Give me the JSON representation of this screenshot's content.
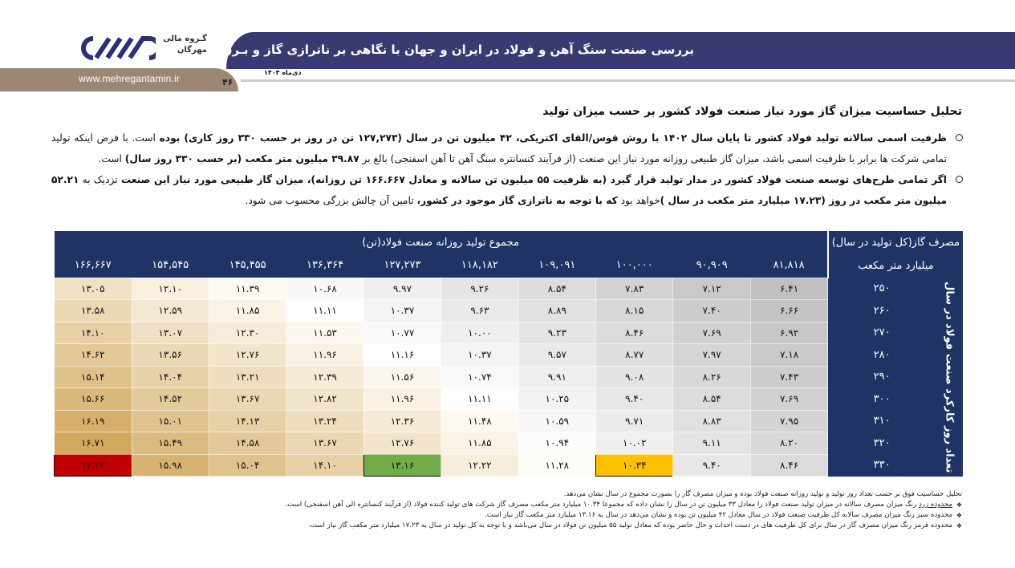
{
  "header": {
    "title": "بررسی صنعت سنگ آهن و فولاد در ایران و جهان با نگاهی بر ناترازی گاز و بـرق در صنعت فولاد",
    "date": "دی‌ماه ۱۴۰۳",
    "url": "www.mehregantamin.ir",
    "page_number": "۴۶",
    "logo_line1": "گـروه مالی",
    "logo_line2": "مهرگان"
  },
  "section_title": "تحلیل حساسیت میزان گاز مورد نیاز صنعت فولاد کشور بر حسب میزان تولید",
  "bullets": [
    {
      "b1": "ظرفیت اسمی سالانه تولید فولاد کشور تا پایان سال ۱۴۰۲ با روش قوس/القای اکتریکی، ۴۲ میلیون تن در سال (۱۲۷,۲۷۳ تن در روز بر حسب ۳۳۰ روز کاری)  بوده",
      "t1": " است. با فرض اینکه تولید تمامی شرکت ها برابر با ظرفیت اسمی باشد، میزان گاز طبیعی روزانه مورد نیاز این صنعت (از فرآیند کنسانتره سنگ آهن تا آهن اسفنجی) بالغ بر ",
      "b2": "۳۹.۸۷ میلیون متر مکعب (بر حسب ۳۳۰ روز سال)",
      "t2": " است."
    },
    {
      "b1": "اگر تمامی طرح‌های توسعه صنعت فولاد کشور در مدار تولید قرار گیرد (به ظرفیت ۵۵ میلیون تن سالانه و معادل ۱۶۶.۶۶۷ تن روزانه)، میزان گاز طبیعی مورد نیاز این صنعت",
      "t1": " نزدیک به ",
      "b2": "۵۲.۲۱ میلیون متر مکعب در روز (۱۷.۲۳ میلیارد متر مکعب در سال )",
      "t2": "خواهد بود ",
      "b3": "که با توجه به ناترازی گاز موجود در کشور،",
      "t3": " تامین آن چالش بزرگی محسوب می شود."
    }
  ],
  "table": {
    "group_header": "مجموع تولید روزانه صنعت فولاد(تن)",
    "corner_header_1": "مصرف گاز(کل تولید در سال)",
    "corner_header_2": "میلیارد متر مکعب",
    "side_label": "تعداد روز کارکرد صنعت فولاد در سال",
    "columns": [
      "۸۱,۸۱۸",
      "۹۰,۹۰۹",
      "۱۰۰,۰۰۰",
      "۱۰۹,۰۹۱",
      "۱۱۸,۱۸۲",
      "۱۲۷,۲۷۳",
      "۱۳۶,۳۶۴",
      "۱۴۵,۴۵۵",
      "۱۵۴,۵۴۵",
      "۱۶۶,۶۶۷"
    ],
    "rows": [
      {
        "days": "۲۵۰",
        "values": [
          "۶.۴۱",
          "۷.۱۲",
          "۷.۸۳",
          "۸.۵۴",
          "۹.۲۶",
          "۹.۹۷",
          "۱۰.۶۸",
          "۱۱.۳۹",
          "۱۲.۱۰",
          "۱۳.۰۵"
        ]
      },
      {
        "days": "۲۶۰",
        "values": [
          "۶.۶۶",
          "۷.۴۰",
          "۸.۱۵",
          "۸.۸۹",
          "۹.۶۳",
          "۱۰.۳۷",
          "۱۱.۱۱",
          "۱۱.۸۵",
          "۱۲.۵۹",
          "۱۳.۵۸"
        ]
      },
      {
        "days": "۲۷۰",
        "values": [
          "۶.۹۲",
          "۷.۶۹",
          "۸.۴۶",
          "۹.۲۳",
          "۱۰.۰۰",
          "۱۰.۷۷",
          "۱۱.۵۳",
          "۱۲.۳۰",
          "۱۳.۰۷",
          "۱۴.۱۰"
        ]
      },
      {
        "days": "۲۸۰",
        "values": [
          "۷.۱۸",
          "۷.۹۷",
          "۸.۷۷",
          "۹.۵۷",
          "۱۰.۳۷",
          "۱۱.۱۶",
          "۱۱.۹۶",
          "۱۲.۷۶",
          "۱۳.۵۶",
          "۱۴.۶۲"
        ]
      },
      {
        "days": "۲۹۰",
        "values": [
          "۷.۴۳",
          "۸.۲۶",
          "۹.۰۸",
          "۹.۹۱",
          "۱۰.۷۴",
          "۱۱.۵۶",
          "۱۲.۳۹",
          "۱۳.۲۱",
          "۱۴.۰۴",
          "۱۵.۱۴"
        ]
      },
      {
        "days": "۳۰۰",
        "values": [
          "۷.۶۹",
          "۸.۵۴",
          "۹.۴۰",
          "۱۰.۲۵",
          "۱۱.۱۱",
          "۱۱.۹۶",
          "۱۲.۸۲",
          "۱۳.۶۷",
          "۱۴.۵۲",
          "۱۵.۶۶"
        ]
      },
      {
        "days": "۳۱۰",
        "values": [
          "۷.۹۵",
          "۸.۸۳",
          "۹.۷۱",
          "۱۰.۵۹",
          "۱۱.۴۸",
          "۱۲.۳۶",
          "۱۳.۲۴",
          "۱۴.۱۳",
          "۱۵.۰۱",
          "۱۶.۱۹"
        ]
      },
      {
        "days": "۳۲۰",
        "values": [
          "۸.۲۰",
          "۹.۱۱",
          "۱۰.۰۲",
          "۱۰.۹۴",
          "۱۱.۸۵",
          "۱۲.۷۶",
          "۱۳.۶۷",
          "۱۴.۵۸",
          "۱۵.۴۹",
          "۱۶.۷۱"
        ]
      },
      {
        "days": "۳۳۰",
        "values": [
          "۸.۴۶",
          "۹.۴۰",
          "۱۰.۳۴",
          "۱۱.۲۸",
          "۱۲.۲۲",
          "۱۳.۱۶",
          "۱۴.۱۰",
          "۱۵.۰۴",
          "۱۵.۹۸",
          "۱۷.۲۳"
        ]
      }
    ],
    "highlights": {
      "yellow": "#ffc000",
      "green": "#70ad47",
      "red": "#c00000"
    }
  },
  "notes": {
    "intro": "تحلیل حساسیت فوق بر حسب تعداد روز تولید و تولید روزانه صنعت فولاد بوده و میزان مصرف گاز را بصورت مجموع در سال نشان می‌دهد.",
    "items": [
      {
        "u": "محدوده زرد",
        "t": " رنگ میزان مصرف سالانه در میزان تولید صنعت فولاد را معادل ۳۳ میلیون تن در سال را نشان داده که مجموعا ۱۰.۳۴ میلیارد متر مکعب مصرف گاز شرکت های تولید کننده فولاد (از فرآیند کنسانتره الی آهن اسفنجی) است."
      },
      {
        "u": "",
        "t": "محدوده سبز رنگ میزان مصرف سالانه کل ظرفیت صنعت فولاد در سال معادل ۴۲ میلیون تن بوده و نشان می‌دهد در سال به ۱۳.۱۶ میلیارد متر مکعب گاز نیاز است."
      },
      {
        "u": "",
        "t": "محدوده قرمز رنگ میزان مصرف گاز در سال برای کل ظرفیت های در دست احداث و حال حاضر بوده که معادل تولید ۵۵ میلیون تن فولاد در سال می‌باشد و با توجه به کل تولید در سال به ۱۷.۲۳ میلیارد متر مکعب گاز نیاز است."
      }
    ]
  }
}
